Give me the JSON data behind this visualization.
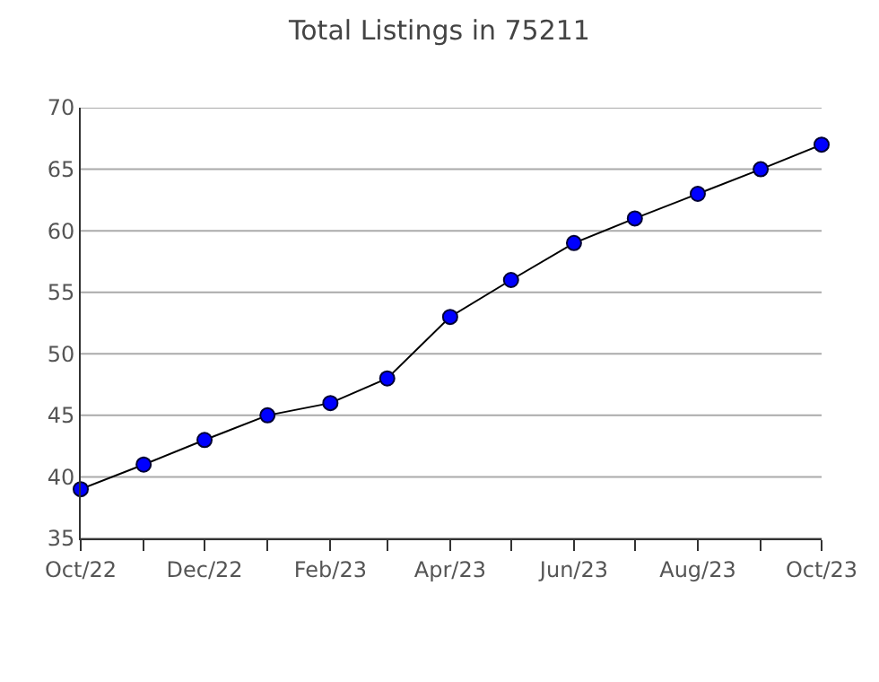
{
  "chart_data": {
    "type": "line",
    "title": "Total Listings in 75211",
    "x": [
      "2022-10",
      "2022-11",
      "2022-12",
      "2023-01",
      "2023-02",
      "2023-03",
      "2023-04",
      "2023-05",
      "2023-06",
      "2023-07",
      "2023-08",
      "2023-09",
      "2023-10"
    ],
    "series": [
      {
        "color": "#0000ff",
        "values": [
          39,
          41,
          43,
          45,
          46,
          48,
          53,
          56,
          59,
          61,
          63,
          65,
          67
        ]
      }
    ],
    "xlim": [
      "2022-10",
      "2023-10"
    ],
    "xticks": [
      {
        "value": "2022-10",
        "label": "Oct/22"
      },
      {
        "value": "2022-11",
        "label": null
      },
      {
        "value": "2022-12",
        "label": "Dec/22"
      },
      {
        "value": "2023-01",
        "label": null
      },
      {
        "value": "2023-02",
        "label": "Feb/23"
      },
      {
        "value": "2023-03",
        "label": null
      },
      {
        "value": "2023-04",
        "label": "Apr/23"
      },
      {
        "value": "2023-05",
        "label": null
      },
      {
        "value": "2023-06",
        "label": "Jun/23"
      },
      {
        "value": "2023-07",
        "label": null
      },
      {
        "value": "2023-08",
        "label": "Aug/23"
      },
      {
        "value": "2023-09",
        "label": null
      },
      {
        "value": "2023-10",
        "label": "Oct/23"
      }
    ],
    "ylim": [
      35,
      70
    ],
    "yticks": [
      35,
      40,
      45,
      50,
      55,
      60,
      65,
      70
    ],
    "grid": "y",
    "legend": false,
    "marker": "circle",
    "line_style": "solid"
  }
}
